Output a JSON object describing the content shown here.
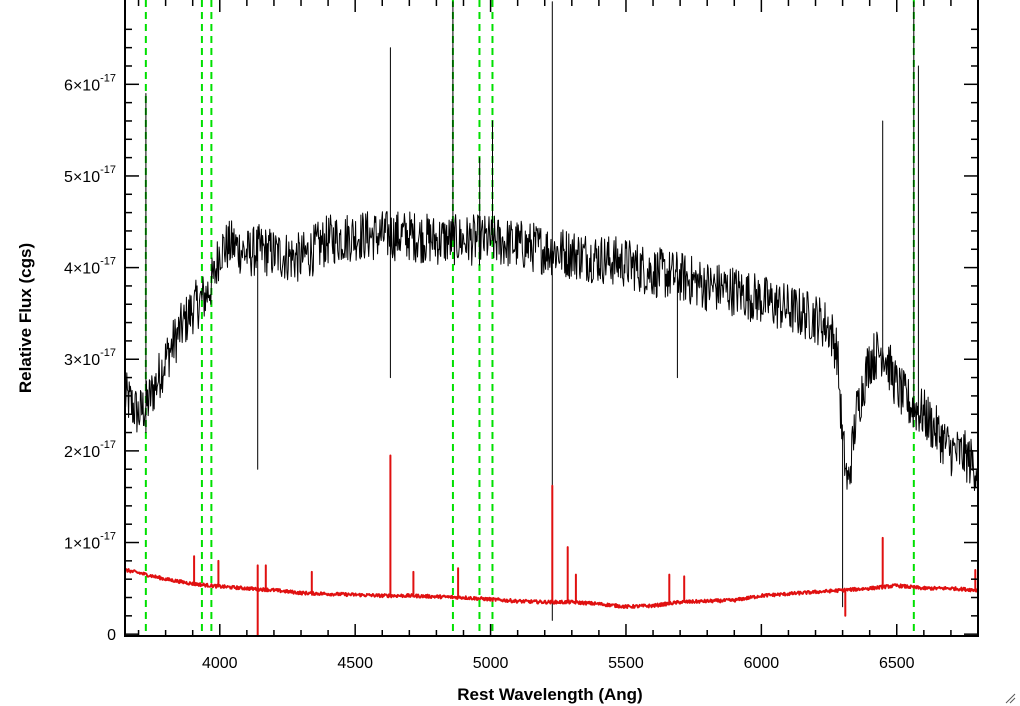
{
  "chart_data": {
    "type": "line",
    "xlabel": "Rest Wavelength (Ang)",
    "ylabel": "Relative Flux (cgs)",
    "xlim": [
      3650,
      6800
    ],
    "ylim": [
      -2e-19,
      6.92e-17
    ],
    "x_ticks": [
      {
        "value": 4000,
        "label": "4000"
      },
      {
        "value": 4500,
        "label": "4500"
      },
      {
        "value": 5000,
        "label": "5000"
      },
      {
        "value": 5500,
        "label": "5500"
      },
      {
        "value": 6000,
        "label": "6000"
      },
      {
        "value": 6500,
        "label": "6500"
      }
    ],
    "y_ticks": [
      {
        "value": 0,
        "mant": "0",
        "exp": ""
      },
      {
        "value": 1e-17,
        "mant": "1×10",
        "exp": "-17"
      },
      {
        "value": 2e-17,
        "mant": "2×10",
        "exp": "-17"
      },
      {
        "value": 3e-17,
        "mant": "3×10",
        "exp": "-17"
      },
      {
        "value": 4e-17,
        "mant": "4×10",
        "exp": "-17"
      },
      {
        "value": 5e-17,
        "mant": "5×10",
        "exp": "-17"
      },
      {
        "value": 6e-17,
        "mant": "6×10",
        "exp": "-17"
      }
    ],
    "grid": false,
    "legend": "none",
    "colors": {
      "spectrum": "#000000",
      "model": "#e01010",
      "line_markers": "#00e000"
    },
    "series": [
      {
        "color": "#000000",
        "points": [
          [
            3650,
            2.6e-17
          ],
          [
            3700,
            2.4e-17
          ],
          [
            3730,
            2.5e-17
          ],
          [
            3760,
            2.7e-17
          ],
          [
            3800,
            3e-17
          ],
          [
            3850,
            3.3e-17
          ],
          [
            3900,
            3.55e-17
          ],
          [
            3950,
            3.7e-17
          ],
          [
            3980,
            3.9e-17
          ],
          [
            4000,
            4.2e-17
          ],
          [
            4050,
            4.25e-17
          ],
          [
            4100,
            4.15e-17
          ],
          [
            4150,
            4.2e-17
          ],
          [
            4200,
            4.15e-17
          ],
          [
            4300,
            4.1e-17
          ],
          [
            4400,
            4.3e-17
          ],
          [
            4500,
            4.35e-17
          ],
          [
            4600,
            4.35e-17
          ],
          [
            4700,
            4.35e-17
          ],
          [
            4800,
            4.3e-17
          ],
          [
            4900,
            4.3e-17
          ],
          [
            5000,
            4.3e-17
          ],
          [
            5100,
            4.25e-17
          ],
          [
            5200,
            4.2e-17
          ],
          [
            5300,
            4.15e-17
          ],
          [
            5400,
            4.1e-17
          ],
          [
            5500,
            4.05e-17
          ],
          [
            5600,
            3.95e-17
          ],
          [
            5700,
            3.9e-17
          ],
          [
            5800,
            3.8e-17
          ],
          [
            5900,
            3.75e-17
          ],
          [
            6000,
            3.65e-17
          ],
          [
            6100,
            3.55e-17
          ],
          [
            6200,
            3.45e-17
          ],
          [
            6250,
            3.35e-17
          ],
          [
            6280,
            3.1e-17
          ],
          [
            6300,
            2.1e-17
          ],
          [
            6320,
            1.6e-17
          ],
          [
            6350,
            2.4e-17
          ],
          [
            6400,
            3e-17
          ],
          [
            6450,
            3.1e-17
          ],
          [
            6500,
            2.7e-17
          ],
          [
            6550,
            2.5e-17
          ],
          [
            6600,
            2.4e-17
          ],
          [
            6650,
            2.2e-17
          ],
          [
            6700,
            2e-17
          ],
          [
            6750,
            1.95e-17
          ],
          [
            6800,
            1.8e-17
          ]
        ],
        "features": [
          [
            3727,
            5.9e-17
          ],
          [
            3727,
            2.2e-17
          ],
          [
            4140,
            1.8e-17
          ],
          [
            4630,
            6.4e-17
          ],
          [
            4630,
            2.8e-17
          ],
          [
            4861,
            6.9e-17
          ],
          [
            4960,
            5.2e-17
          ],
          [
            5007,
            5.6e-17
          ],
          [
            5228,
            6.9e-17
          ],
          [
            5228,
            1.5e-18
          ],
          [
            5690,
            2.8e-17
          ],
          [
            6300,
            3e-18
          ],
          [
            6448,
            5.6e-17
          ],
          [
            6563,
            6.9e-17
          ],
          [
            6580,
            6.2e-17
          ]
        ]
      },
      {
        "color": "#e01010",
        "points": [
          [
            3650,
            7e-18
          ],
          [
            3700,
            6.7e-18
          ],
          [
            3800,
            6e-18
          ],
          [
            3900,
            5.5e-18
          ],
          [
            4000,
            5.2e-18
          ],
          [
            4100,
            5e-18
          ],
          [
            4200,
            4.8e-18
          ],
          [
            4300,
            4.5e-18
          ],
          [
            4400,
            4.4e-18
          ],
          [
            4500,
            4.3e-18
          ],
          [
            4600,
            4.2e-18
          ],
          [
            4700,
            4.2e-18
          ],
          [
            4800,
            4.1e-18
          ],
          [
            4900,
            4e-18
          ],
          [
            5000,
            3.8e-18
          ],
          [
            5100,
            3.6e-18
          ],
          [
            5200,
            3.5e-18
          ],
          [
            5300,
            3.5e-18
          ],
          [
            5400,
            3.3e-18
          ],
          [
            5500,
            3e-18
          ],
          [
            5600,
            3.1e-18
          ],
          [
            5700,
            3.5e-18
          ],
          [
            5800,
            3.6e-18
          ],
          [
            5900,
            3.7e-18
          ],
          [
            6000,
            4.2e-18
          ],
          [
            6100,
            4.4e-18
          ],
          [
            6200,
            4.6e-18
          ],
          [
            6300,
            4.8e-18
          ],
          [
            6400,
            5e-18
          ],
          [
            6500,
            5.3e-18
          ],
          [
            6600,
            5e-18
          ],
          [
            6700,
            5e-18
          ],
          [
            6800,
            4.8e-18
          ]
        ],
        "features": [
          [
            3905,
            8.5e-18
          ],
          [
            3995,
            8e-18
          ],
          [
            4140,
            7.5e-18
          ],
          [
            4140,
            -2e-19
          ],
          [
            4170,
            7.5e-18
          ],
          [
            4340,
            6.8e-18
          ],
          [
            4630,
            1.95e-17
          ],
          [
            4715,
            6.8e-18
          ],
          [
            4880,
            7.2e-18
          ],
          [
            5228,
            1.62e-17
          ],
          [
            5285,
            9.5e-18
          ],
          [
            5315,
            6.5e-18
          ],
          [
            5660,
            6.5e-18
          ],
          [
            5715,
            6.3e-18
          ],
          [
            6448,
            1.05e-17
          ],
          [
            6310,
            2e-18
          ],
          [
            6790,
            7e-18
          ]
        ]
      }
    ],
    "reference_lines": [
      {
        "x": 3727,
        "color": "#00e000",
        "style": "dashed"
      },
      {
        "x": 3934,
        "color": "#00e000",
        "style": "dashed"
      },
      {
        "x": 3969,
        "color": "#00e000",
        "style": "dashed"
      },
      {
        "x": 4861,
        "color": "#00e000",
        "style": "dashed"
      },
      {
        "x": 4959,
        "color": "#00e000",
        "style": "dashed"
      },
      {
        "x": 5007,
        "color": "#00e000",
        "style": "dashed"
      },
      {
        "x": 6563,
        "color": "#00e000",
        "style": "dashed"
      }
    ]
  }
}
